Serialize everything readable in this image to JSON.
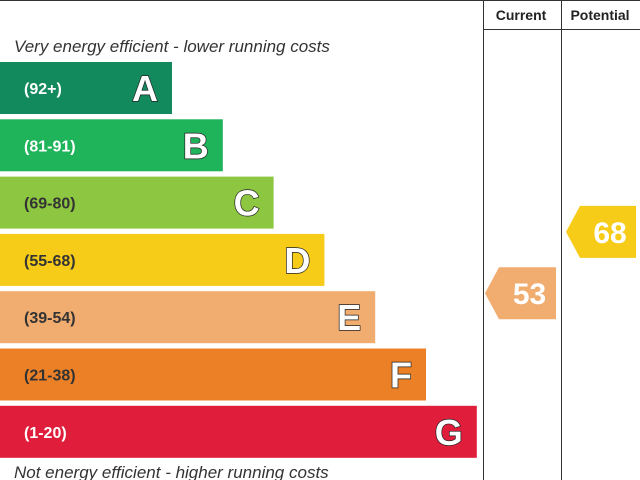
{
  "chart_data": {
    "type": "bar",
    "headers": {
      "current": "Current",
      "potential": "Potential"
    },
    "top_caption": "Very energy efficient - lower running costs",
    "bottom_caption": "Not energy efficient - higher running costs",
    "bands": [
      {
        "letter": "A",
        "range": "(92+)",
        "min": 92,
        "max": 100,
        "color": "#138a5e",
        "text_color": "#ffffff"
      },
      {
        "letter": "B",
        "range": "(81-91)",
        "min": 81,
        "max": 91,
        "color": "#1fb35a",
        "text_color": "#ffffff"
      },
      {
        "letter": "C",
        "range": "(69-80)",
        "min": 69,
        "max": 80,
        "color": "#8dc640",
        "text_color": "#333333"
      },
      {
        "letter": "D",
        "range": "(55-68)",
        "min": 55,
        "max": 68,
        "color": "#f6cc19",
        "text_color": "#333333"
      },
      {
        "letter": "E",
        "range": "(39-54)",
        "min": 39,
        "max": 54,
        "color": "#f1ac70",
        "text_color": "#333333"
      },
      {
        "letter": "F",
        "range": "(21-38)",
        "min": 21,
        "max": 38,
        "color": "#ec8026",
        "text_color": "#333333"
      },
      {
        "letter": "G",
        "range": "(1-20)",
        "min": 1,
        "max": 20,
        "color": "#e01e3c",
        "text_color": "#ffffff"
      }
    ],
    "current": {
      "value": 53,
      "band": "E",
      "color": "#f1ac70"
    },
    "potential": {
      "value": 68,
      "band": "D",
      "color": "#f6cc19"
    }
  }
}
